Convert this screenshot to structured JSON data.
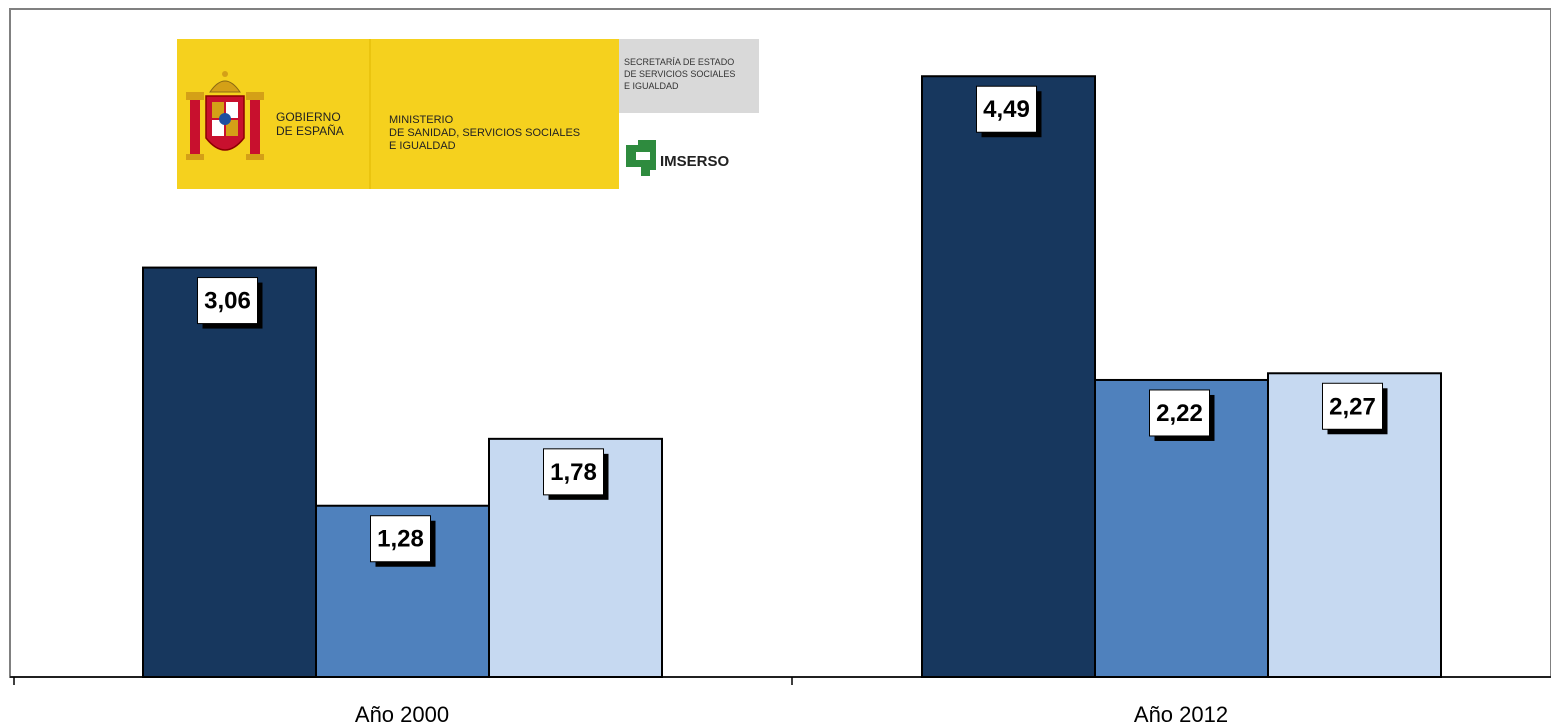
{
  "logo": {
    "gobierno_line1": "GOBIERNO",
    "gobierno_line2": "DE ESPAÑA",
    "ministerio_line1": "MINISTERIO",
    "ministerio_line2": "DE SANIDAD, SERVICIOS SOCIALES",
    "ministerio_line3": "E IGUALDAD",
    "secretaria_line1": "SECRETARÍA DE ESTADO",
    "secretaria_line2": "DE SERVICIOS SOCIALES",
    "secretaria_line3": "E IGUALDAD",
    "imserso": "IMSERSO",
    "colors": {
      "yellow": "#F5D11E",
      "grey": "#D9D9D9",
      "green": "#2E8B3E"
    }
  },
  "chart_data": {
    "type": "bar",
    "categories": [
      "Año 2000",
      "Año 2012"
    ],
    "series": [
      {
        "values": [
          3.06,
          4.49
        ],
        "labels": [
          "3,06",
          "4,49"
        ],
        "color": "#17375E"
      },
      {
        "values": [
          1.28,
          2.22
        ],
        "labels": [
          "1,28",
          "2,22"
        ],
        "color": "#4F81BD"
      },
      {
        "values": [
          1.78,
          2.27
        ],
        "labels": [
          "1,78",
          "2,27"
        ],
        "color": "#C6D9F1"
      }
    ],
    "ylim": [
      0,
      5
    ],
    "grid": false,
    "legend": "none"
  }
}
